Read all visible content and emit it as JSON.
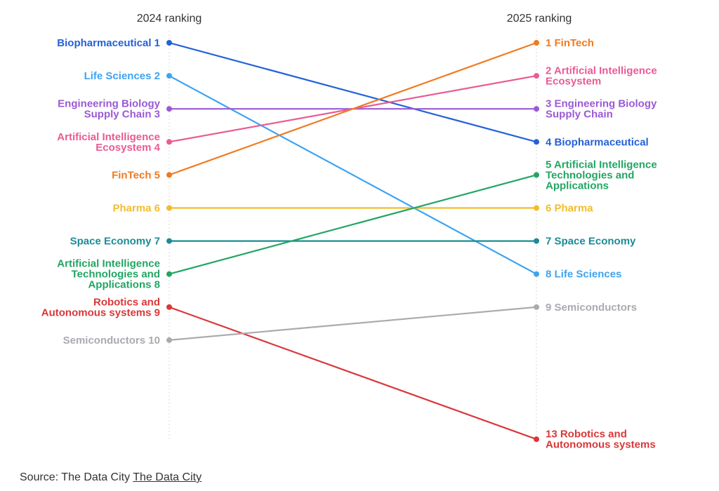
{
  "chart_data": {
    "type": "slope",
    "left_header": "2024 ranking",
    "right_header": "2025 ranking",
    "series": [
      {
        "name": "Biopharmaceutical",
        "rank_2024": 1,
        "rank_2025": 4,
        "color": "#2461d8",
        "left_label": [
          "Biopharmaceutical 1"
        ],
        "right_label": [
          "4 Biopharmaceutical"
        ]
      },
      {
        "name": "Life Sciences",
        "rank_2024": 2,
        "rank_2025": 8,
        "color": "#3fa3f0",
        "left_label": [
          "Life Sciences 2"
        ],
        "right_label": [
          "8 Life Sciences"
        ]
      },
      {
        "name": "Engineering Biology Supply Chain",
        "rank_2024": 3,
        "rank_2025": 3,
        "color": "#9b59d6",
        "left_label": [
          "Engineering Biology",
          "Supply Chain 3"
        ],
        "right_label": [
          "3 Engineering Biology",
          "Supply Chain"
        ]
      },
      {
        "name": "Artificial Intelligence Ecosystem",
        "rank_2024": 4,
        "rank_2025": 2,
        "color": "#ea5b93",
        "left_label": [
          "Artificial Intelligence",
          "Ecosystem 4"
        ],
        "right_label": [
          "2 Artificial Intelligence",
          "Ecosystem"
        ]
      },
      {
        "name": "FinTech",
        "rank_2024": 5,
        "rank_2025": 1,
        "color": "#f07a1f",
        "left_label": [
          "FinTech 5"
        ],
        "right_label": [
          "1 FinTech"
        ]
      },
      {
        "name": "Pharma",
        "rank_2024": 6,
        "rank_2025": 6,
        "color": "#f2bc2b",
        "left_label": [
          "Pharma 6"
        ],
        "right_label": [
          "6 Pharma"
        ]
      },
      {
        "name": "Space Economy",
        "rank_2024": 7,
        "rank_2025": 7,
        "color": "#1b8b96",
        "left_label": [
          "Space Economy 7"
        ],
        "right_label": [
          "7 Space Economy"
        ]
      },
      {
        "name": "Artificial Intelligence Technologies and Applications",
        "rank_2024": 8,
        "rank_2025": 5,
        "color": "#22a563",
        "left_label": [
          "Artificial Intelligence",
          "Technologies and",
          "Applications 8"
        ],
        "right_label": [
          "5 Artificial Intelligence",
          "Technologies and",
          "Applications"
        ]
      },
      {
        "name": "Robotics and Autonomous systems",
        "rank_2024": 9,
        "rank_2025": 13,
        "color": "#d9383a",
        "left_label": [
          "Robotics and",
          "Autonomous systems 9"
        ],
        "right_label": [
          "13 Robotics and",
          "Autonomous systems"
        ]
      },
      {
        "name": "Semiconductors",
        "rank_2024": 10,
        "rank_2025": 9,
        "color": "#a9abb0",
        "left_label": [
          "Semiconductors 10"
        ],
        "right_label": [
          "9 Semiconductors"
        ]
      }
    ]
  },
  "source": {
    "prefix": "Source: The Data City ",
    "link": "The Data City"
  }
}
